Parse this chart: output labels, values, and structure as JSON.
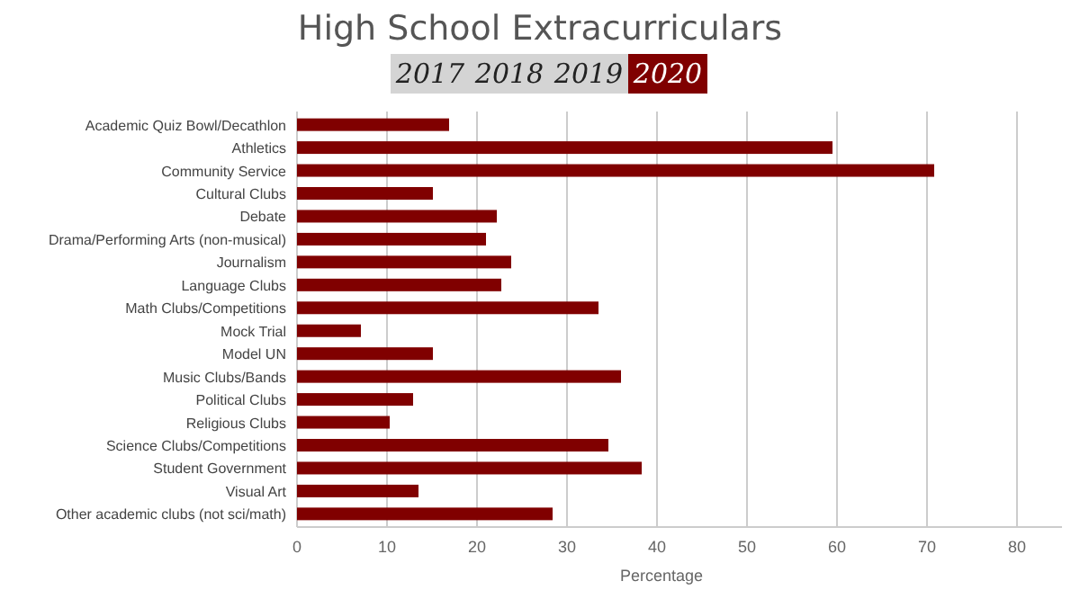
{
  "chart_data": {
    "type": "bar",
    "orientation": "horizontal",
    "title": "High School Extracurriculars",
    "xlabel": "Percentage",
    "annotations": [
      "2017",
      "2018",
      "2019"
    ],
    "categories": [
      "Academic Quiz Bowl/Decathlon",
      "Athletics",
      "Community Service",
      "Cultural Clubs",
      "Debate",
      "Drama/Performing Arts (non-musical)",
      "Journalism",
      "Language Clubs",
      "Math Clubs/Competitions",
      "Mock Trial",
      "Model UN",
      "Music Clubs/Bands",
      "Political Clubs",
      "Religious Clubs",
      "Science Clubs/Competitions",
      "Student Government",
      "Visual Art",
      "Other academic clubs (not sci/math)"
    ],
    "series": [
      {
        "name": "2020",
        "color": "#800000",
        "values": [
          16.9,
          59.5,
          70.8,
          15.1,
          22.2,
          21.0,
          23.8,
          22.7,
          33.5,
          7.1,
          15.1,
          36.0,
          12.9,
          10.3,
          34.6,
          38.3,
          13.5,
          28.4
        ]
      }
    ],
    "xlim": [
      0,
      85
    ],
    "xticks": [
      0,
      10,
      20,
      30,
      40,
      50,
      60,
      70,
      80
    ],
    "grid": "x",
    "legend": "top"
  }
}
